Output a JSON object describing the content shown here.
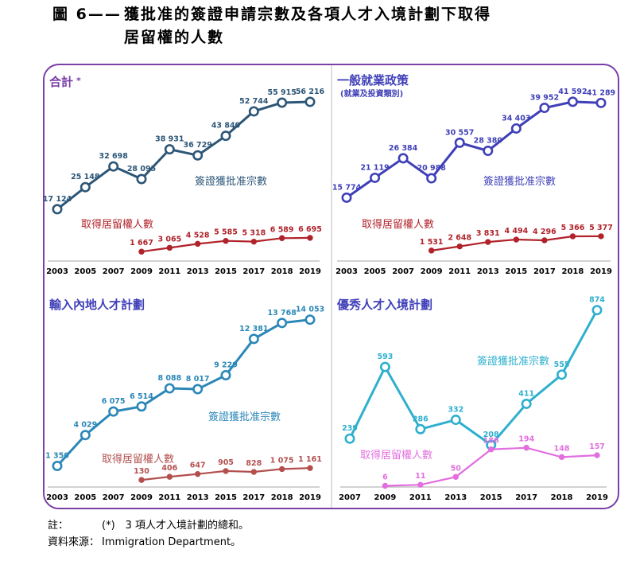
{
  "figure": {
    "number": "圖 6——",
    "title_line1": "獲批准的簽證申請宗數及各項人才入境計劃下取得",
    "title_line2": "居留權的人數"
  },
  "notes": {
    "note_label": "註：",
    "note_text": "(*)　3 項人才入境計劃的總和。",
    "source_label": "資料來源：",
    "source_text": "Immigration Department。"
  },
  "chart_data": [
    {
      "type": "line",
      "title": "合計",
      "title_suffix": "*",
      "subtitle": "",
      "title_color": "#7b3fa8",
      "categories": [
        "2003",
        "2005",
        "2007",
        "2009",
        "2011",
        "2013",
        "2015",
        "2017",
        "2018",
        "2019"
      ],
      "ylim": [
        0,
        62000
      ],
      "series": [
        {
          "name": "簽證獲批准宗數",
          "color": "#2c5677",
          "values": [
            17124,
            25148,
            32698,
            28095,
            38931,
            36729,
            43840,
            52744,
            55915,
            56216
          ],
          "labels": [
            "17 124",
            "25 148",
            "32 698",
            "28 095",
            "38 931",
            "36 729",
            "43 840",
            "52 744",
            "55 915",
            "56 216"
          ]
        },
        {
          "name": "取得居留權人數",
          "color": "#b0232a",
          "values": [
            null,
            null,
            null,
            1667,
            3065,
            4528,
            5585,
            5318,
            6589,
            6695
          ],
          "labels": [
            "",
            "",
            "",
            "1 667",
            "3 065",
            "4 528",
            "5 585",
            "5 318",
            "6 589",
            "6 695"
          ]
        }
      ]
    },
    {
      "type": "line",
      "title": "一般就業政策",
      "subtitle": "(就業及投資類別)",
      "title_color": "#3f3fb8",
      "categories": [
        "2003",
        "2005",
        "2007",
        "2009",
        "2011",
        "2013",
        "2015",
        "2017",
        "2018",
        "2019"
      ],
      "ylim": [
        0,
        45000
      ],
      "series": [
        {
          "name": "簽證獲批准宗數",
          "color": "#3f3fb8",
          "values": [
            15774,
            21119,
            26384,
            20988,
            30557,
            28380,
            34403,
            39952,
            41592,
            41289
          ],
          "labels": [
            "15 774",
            "21 119",
            "26 384",
            "20 988",
            "30 557",
            "28 380",
            "34 403",
            "39 952",
            "41 592",
            "41 289"
          ]
        },
        {
          "name": "取得居留權人數",
          "color": "#b0232a",
          "values": [
            null,
            null,
            null,
            1531,
            2648,
            3831,
            4494,
            4296,
            5366,
            5377
          ],
          "labels": [
            "",
            "",
            "",
            "1 531",
            "2 648",
            "3 831",
            "4 494",
            "4 296",
            "5 366",
            "5 377"
          ]
        }
      ]
    },
    {
      "type": "line",
      "title": "輸入內地人才計劃",
      "subtitle": "",
      "title_color": "#3f3fb8",
      "categories": [
        "2003",
        "2005",
        "2007",
        "2009",
        "2011",
        "2013",
        "2015",
        "2017",
        "2018",
        "2019"
      ],
      "ylim": [
        0,
        15000
      ],
      "series": [
        {
          "name": "簽證獲批准宗數",
          "color": "#2b87b8",
          "values": [
            1350,
            4029,
            6075,
            6514,
            8088,
            8017,
            9229,
            12381,
            13768,
            14053
          ],
          "labels": [
            "1 350",
            "4 029",
            "6 075",
            "6 514",
            "8 088",
            "8 017",
            "9 229",
            "12 381",
            "13 768",
            "14 053"
          ]
        },
        {
          "name": "取得居留權人數",
          "color": "#b3504f",
          "values": [
            null,
            null,
            null,
            130,
            406,
            647,
            905,
            828,
            1075,
            1161
          ],
          "labels": [
            "",
            "",
            "",
            "130",
            "406",
            "647",
            "905",
            "828",
            "1 075",
            "1 161"
          ]
        }
      ]
    },
    {
      "type": "line",
      "title": "優秀人才入境計劃",
      "subtitle": "",
      "title_color": "#3f3fb8",
      "categories": [
        "2007",
        "2009",
        "2011",
        "2013",
        "2015",
        "2017",
        "2018",
        "2019"
      ],
      "ylim": [
        0,
        920
      ],
      "series": [
        {
          "name": "簽證獲批准宗數",
          "color": "#2eafce",
          "values": [
            239,
            593,
            286,
            332,
            208,
            411,
            555,
            874
          ],
          "labels": [
            "239",
            "593",
            "286",
            "332",
            "208",
            "411",
            "555",
            "874"
          ]
        },
        {
          "name": "取得居留權人數",
          "color": "#e26ee0",
          "values": [
            null,
            6,
            11,
            50,
            186,
            194,
            148,
            157
          ],
          "labels": [
            "",
            "6",
            "11",
            "50",
            "186",
            "194",
            "148",
            "157"
          ]
        }
      ]
    }
  ]
}
